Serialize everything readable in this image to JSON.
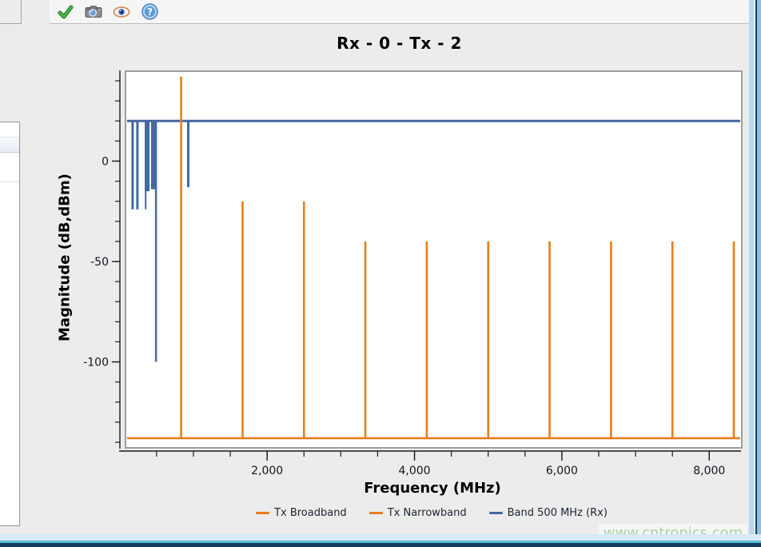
{
  "toolbar": {
    "icons": [
      {
        "name": "apply-check-icon"
      },
      {
        "name": "camera-snapshot-icon"
      },
      {
        "name": "eye-visibility-icon"
      },
      {
        "name": "help-icon",
        "glyph": "?"
      }
    ]
  },
  "watermark": {
    "text": "www.cntronics.com"
  },
  "chart_data": {
    "type": "line",
    "title": "Rx - 0 - Tx - 2",
    "xlabel": "Frequency (MHz)",
    "ylabel": "Magnitude (dB,dBm)",
    "xlim": [
      100,
      8420
    ],
    "ylim": [
      -142,
      44
    ],
    "grid": false,
    "legend_position": "bottom",
    "axis_color": "#1a1a1a",
    "x_minor_ticks": {
      "start": 500,
      "end": 8000,
      "step": 500
    },
    "x_major_ticks": [
      {
        "value": 2000,
        "label": "2,000"
      },
      {
        "value": 4000,
        "label": "4,000"
      },
      {
        "value": 6000,
        "label": "6,000"
      },
      {
        "value": 8000,
        "label": "8,000"
      }
    ],
    "y_minor_ticks": {
      "start": -140,
      "end": 40,
      "step": 10
    },
    "y_major_ticks": [
      {
        "value": 0,
        "label": "0"
      },
      {
        "value": -50,
        "label": "-50"
      },
      {
        "value": -100,
        "label": "-100"
      }
    ],
    "series": [
      {
        "name": "Tx Broadband",
        "color": "#E87E1A",
        "style": "hline",
        "y": -138,
        "stroke_width": 2.6
      },
      {
        "name": "Tx Narrowband",
        "color": "#E87E1A",
        "style": "spikes-up",
        "base_y": -138,
        "stroke_width": 2.6,
        "spikes": [
          {
            "x": 833,
            "top": 42
          },
          {
            "x": 1667,
            "top": -20
          },
          {
            "x": 2500,
            "top": -20
          },
          {
            "x": 3333,
            "top": -40
          },
          {
            "x": 4167,
            "top": -40
          },
          {
            "x": 5000,
            "top": -40
          },
          {
            "x": 5833,
            "top": -40
          },
          {
            "x": 6667,
            "top": -40
          },
          {
            "x": 7500,
            "top": -40
          },
          {
            "x": 8333,
            "top": -40
          }
        ]
      },
      {
        "name": "Band 500 MHz (Rx)",
        "color": "#44699F",
        "style": "hline-with-notches",
        "y": 20,
        "stroke_width": 3,
        "notches": [
          {
            "x": 175,
            "bottom": -24,
            "w": 3
          },
          {
            "x": 240,
            "bottom": -24,
            "w": 3
          },
          {
            "x": 352,
            "bottom": -24,
            "w": 2
          },
          {
            "x": 372,
            "bottom": -15,
            "w": 6
          },
          {
            "x": 458,
            "bottom": -14,
            "w": 6
          },
          {
            "x": 492,
            "bottom": -100,
            "w": 2.5
          },
          {
            "x": 930,
            "bottom": -13,
            "w": 3
          }
        ]
      }
    ]
  }
}
